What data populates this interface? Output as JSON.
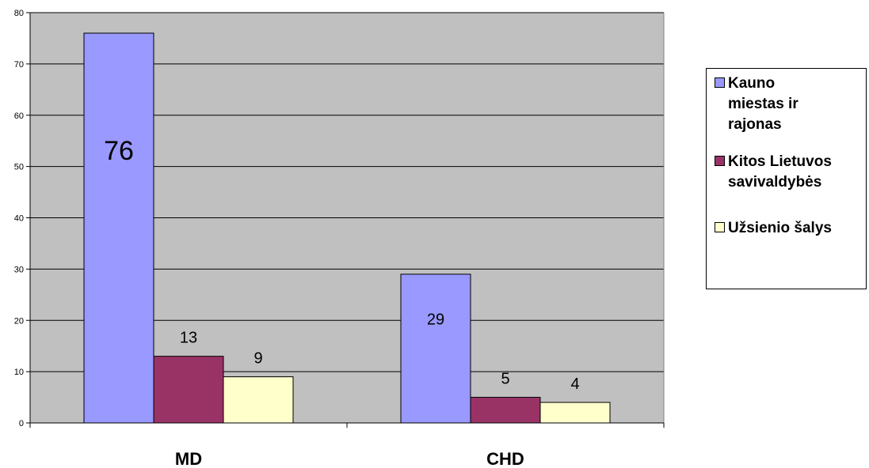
{
  "chart_data": {
    "type": "bar",
    "categories": [
      "MD",
      "CHD"
    ],
    "series": [
      {
        "name": "Kauno miestas ir rajonas",
        "values": [
          76,
          29
        ],
        "color": "#9999ff"
      },
      {
        "name": "Kitos Lietuvos savivaldybės",
        "values": [
          13,
          5
        ],
        "color": "#993366"
      },
      {
        "name": "Užsienio šalys",
        "values": [
          9,
          4
        ],
        "color": "#ffffcc"
      }
    ],
    "data_labels": [
      "76",
      "13",
      "9",
      "29",
      "5",
      "4"
    ],
    "ylim": [
      0,
      80
    ],
    "yticks": [
      "0",
      "10",
      "20",
      "30",
      "40",
      "50",
      "60",
      "70",
      "80"
    ],
    "grid": true,
    "plot_background": "#c0c0c0",
    "legend_position": "right"
  },
  "legend": {
    "items": [
      {
        "label": "Kauno\nmiestas ir\nrajonas",
        "color": "#9999ff"
      },
      {
        "label": "Kitos Lietuvos\nsavivaldybės",
        "color": "#993366"
      },
      {
        "label": "Užsienio šalys",
        "color": "#ffffcc"
      }
    ]
  }
}
